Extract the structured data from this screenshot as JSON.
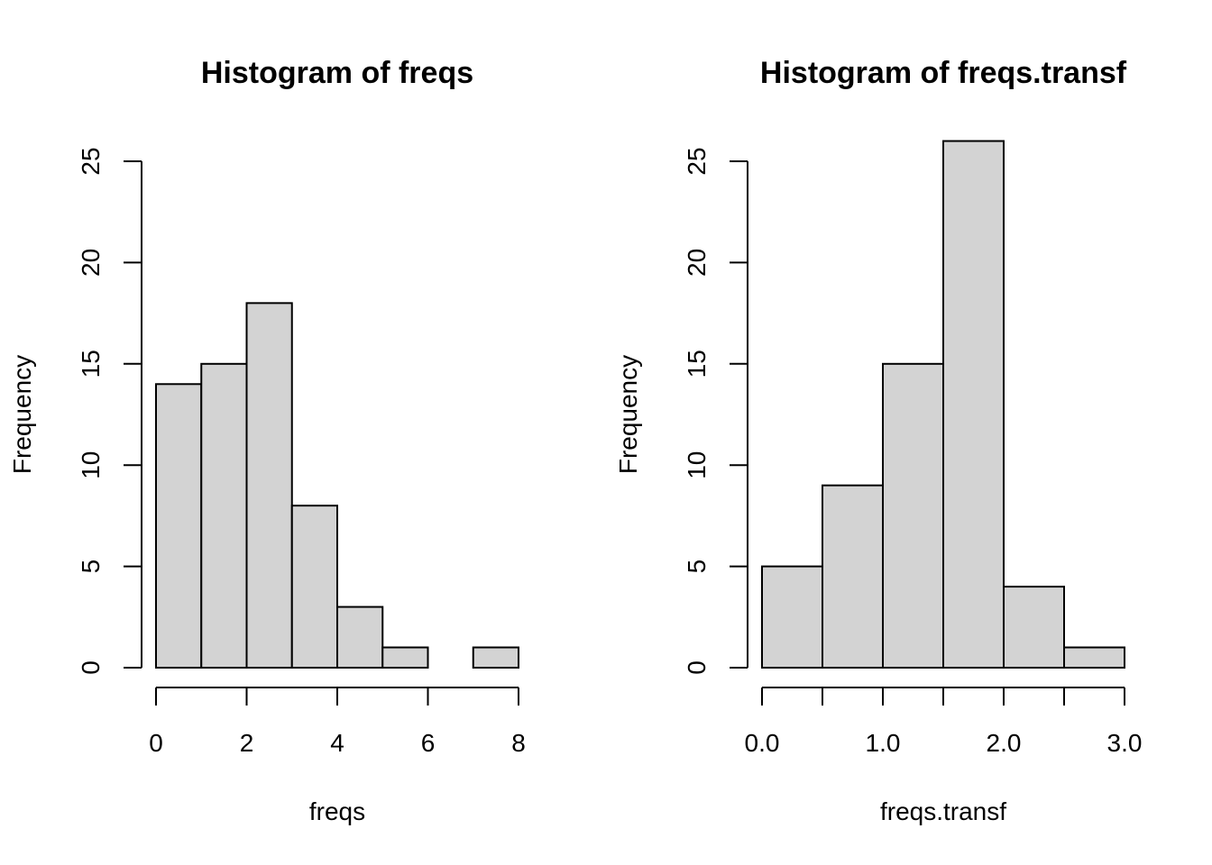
{
  "chart_data": [
    {
      "type": "bar",
      "title": "Histogram of freqs",
      "xlabel": "freqs",
      "ylabel": "Frequency",
      "bins": [
        [
          0,
          1
        ],
        [
          1,
          2
        ],
        [
          2,
          3
        ],
        [
          3,
          4
        ],
        [
          4,
          5
        ],
        [
          5,
          6
        ],
        [
          6,
          7
        ],
        [
          7,
          8
        ]
      ],
      "values": [
        14,
        15,
        18,
        8,
        3,
        1,
        0,
        1
      ],
      "xlim": [
        0,
        8
      ],
      "ylim": [
        0,
        25
      ],
      "xticks": [
        0,
        2,
        4,
        6,
        8
      ],
      "xtick_labels": [
        "0",
        "2",
        "4",
        "6",
        "8"
      ],
      "yticks": [
        0,
        5,
        10,
        15,
        20,
        25
      ],
      "ytick_labels": [
        "0",
        "5",
        "10",
        "15",
        "20",
        "25"
      ],
      "bar_color": "#d3d3d3",
      "grid": false
    },
    {
      "type": "bar",
      "title": "Histogram of freqs.transf",
      "xlabel": "freqs.transf",
      "ylabel": "Frequency",
      "bins": [
        [
          0,
          0.5
        ],
        [
          0.5,
          1
        ],
        [
          1,
          1.5
        ],
        [
          1.5,
          2
        ],
        [
          2,
          2.5
        ],
        [
          2.5,
          3
        ]
      ],
      "values": [
        5,
        9,
        15,
        26,
        4,
        1
      ],
      "xlim": [
        0,
        3
      ],
      "ylim": [
        0,
        25
      ],
      "xticks": [
        0,
        0.5,
        1,
        1.5,
        2,
        2.5,
        3
      ],
      "xtick_labels": [
        "0.0",
        "",
        "1.0",
        "",
        "2.0",
        "",
        "3.0"
      ],
      "yticks": [
        0,
        5,
        10,
        15,
        20,
        25
      ],
      "ytick_labels": [
        "0",
        "5",
        "10",
        "15",
        "20",
        "25"
      ],
      "bar_color": "#d3d3d3",
      "grid": false
    }
  ]
}
